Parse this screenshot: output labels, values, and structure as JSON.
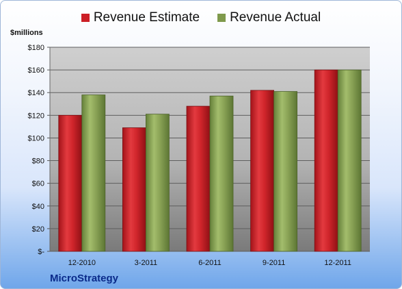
{
  "chart_data": {
    "type": "bar",
    "categories": [
      "12-2010",
      "3-2011",
      "6-2011",
      "9-2011",
      "12-2011"
    ],
    "series": [
      {
        "name": "Revenue Estimate",
        "values": [
          120,
          109,
          128,
          142,
          160
        ],
        "color": "#cc1f26"
      },
      {
        "name": "Revenue Actual",
        "values": [
          138,
          121,
          137,
          141,
          160
        ],
        "color": "#7f9a4c"
      }
    ],
    "ylabel": "$millions",
    "ylim": [
      0,
      180
    ],
    "yticks": [
      0,
      20,
      40,
      60,
      80,
      100,
      120,
      140,
      160,
      180
    ],
    "ytick_labels": [
      "$-",
      "$20",
      "$40",
      "$60",
      "$80",
      "$100",
      "$120",
      "$140",
      "$160",
      "$180"
    ],
    "grid": true,
    "legend_position": "top"
  },
  "legend": {
    "estimate_label": "Revenue Estimate",
    "actual_label": "Revenue Actual",
    "estimate_color": "#cc1f26",
    "actual_color": "#7f9a4c"
  },
  "unit_label": "$millions",
  "company": "MicroStrategy"
}
